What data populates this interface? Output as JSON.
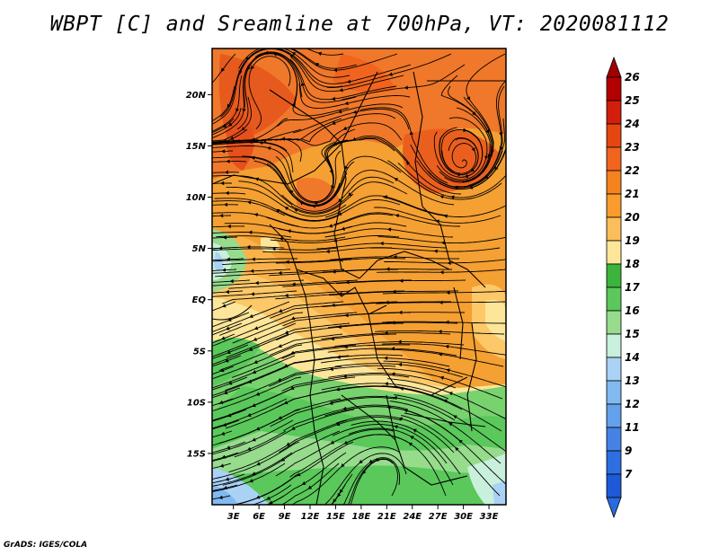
{
  "title": "WBPT [C] and Sreamline at 700hPa, VT: 2020081112",
  "credit": "GrADS: IGES/COLA",
  "map": {
    "lat_ticks": [
      {
        "label": "20N",
        "lat": 20
      },
      {
        "label": "15N",
        "lat": 15
      },
      {
        "label": "10N",
        "lat": 10
      },
      {
        "label": "5N",
        "lat": 5
      },
      {
        "label": "EQ",
        "lat": 0
      },
      {
        "label": "5S",
        "lat": -5
      },
      {
        "label": "10S",
        "lat": -10
      },
      {
        "label": "15S",
        "lat": -15
      }
    ],
    "lon_ticks": [
      {
        "label": "3E",
        "lon": 3
      },
      {
        "label": "6E",
        "lon": 6
      },
      {
        "label": "9E",
        "lon": 9
      },
      {
        "label": "12E",
        "lon": 12
      },
      {
        "label": "15E",
        "lon": 15
      },
      {
        "label": "18E",
        "lon": 18
      },
      {
        "label": "21E",
        "lon": 21
      },
      {
        "label": "24E",
        "lon": 24
      },
      {
        "label": "27E",
        "lon": 27
      },
      {
        "label": "30E",
        "lon": 30
      },
      {
        "label": "33E",
        "lon": 33
      }
    ],
    "lon_range": [
      0.5,
      35
    ],
    "lat_range": [
      -20,
      24.5
    ]
  },
  "colorbar": {
    "levels": [
      {
        "label": "26",
        "color": "#b40000"
      },
      {
        "label": "25",
        "color": "#d21e0a"
      },
      {
        "label": "24",
        "color": "#e6460f"
      },
      {
        "label": "23",
        "color": "#f0641e"
      },
      {
        "label": "22",
        "color": "#f5821e"
      },
      {
        "label": "21",
        "color": "#fa9b2d"
      },
      {
        "label": "20",
        "color": "#fcbe5a"
      },
      {
        "label": "19",
        "color": "#fde699"
      },
      {
        "label": "18",
        "color": "#3cb43c"
      },
      {
        "label": "17",
        "color": "#5ac85a"
      },
      {
        "label": "16",
        "color": "#96dc8c"
      },
      {
        "label": "15",
        "color": "#c8f0dc"
      },
      {
        "label": "14",
        "color": "#aad2f5"
      },
      {
        "label": "13",
        "color": "#82b9f0"
      },
      {
        "label": "12",
        "color": "#64a0eb"
      },
      {
        "label": "11",
        "color": "#4682e6"
      },
      {
        "label": "9",
        "color": "#2d6ee1"
      },
      {
        "label": "7",
        "color": "#1e5ad7"
      }
    ],
    "top_arrow_color": "#a00000",
    "bottom_arrow_color": "#2a6ae0"
  },
  "colors": {
    "orange_fill": "#f5a032",
    "green_fill": "#78d26e",
    "stream_color": "#000000"
  }
}
